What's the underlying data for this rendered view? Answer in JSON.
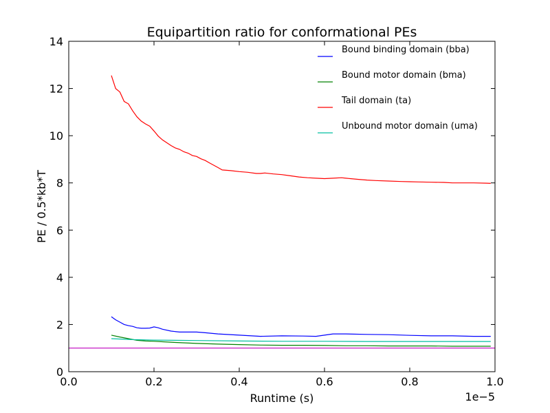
{
  "chart_data": {
    "type": "line",
    "title": "Equipartition ratio for conformational PEs",
    "xlabel": "Runtime (s)",
    "ylabel": "PE / 0.5*kb*T",
    "x_offset_label": "1e−5",
    "xlim": [
      0.0,
      1.0
    ],
    "ylim": [
      0,
      14
    ],
    "x_ticks": [
      "0.0",
      "0.2",
      "0.4",
      "0.6",
      "0.8",
      "1.0"
    ],
    "y_ticks": [
      "0",
      "2",
      "4",
      "6",
      "8",
      "10",
      "12",
      "14"
    ],
    "grid": false,
    "legend_placement": "top-right",
    "series": [
      {
        "name": "Bound binding domain (bba)",
        "color": "#0000ff",
        "x": [
          0.1,
          0.11,
          0.12,
          0.13,
          0.14,
          0.15,
          0.16,
          0.17,
          0.18,
          0.19,
          0.2,
          0.21,
          0.22,
          0.24,
          0.26,
          0.28,
          0.3,
          0.32,
          0.35,
          0.4,
          0.45,
          0.5,
          0.55,
          0.58,
          0.6,
          0.62,
          0.65,
          0.7,
          0.75,
          0.8,
          0.85,
          0.9,
          0.95,
          0.99
        ],
        "values": [
          2.33,
          2.2,
          2.1,
          2.0,
          1.95,
          1.92,
          1.86,
          1.84,
          1.84,
          1.85,
          1.9,
          1.86,
          1.8,
          1.72,
          1.68,
          1.68,
          1.68,
          1.65,
          1.6,
          1.55,
          1.5,
          1.52,
          1.51,
          1.5,
          1.55,
          1.6,
          1.6,
          1.58,
          1.57,
          1.54,
          1.52,
          1.52,
          1.5,
          1.5
        ]
      },
      {
        "name": "Bound motor domain (bma)",
        "color": "#008000",
        "x": [
          0.1,
          0.12,
          0.14,
          0.16,
          0.18,
          0.2,
          0.22,
          0.25,
          0.3,
          0.35,
          0.4,
          0.45,
          0.5,
          0.55,
          0.6,
          0.65,
          0.7,
          0.75,
          0.8,
          0.85,
          0.9,
          0.95,
          0.99
        ],
        "values": [
          1.55,
          1.47,
          1.4,
          1.33,
          1.3,
          1.29,
          1.27,
          1.24,
          1.2,
          1.17,
          1.15,
          1.13,
          1.12,
          1.12,
          1.11,
          1.1,
          1.1,
          1.09,
          1.09,
          1.09,
          1.08,
          1.08,
          1.08
        ]
      },
      {
        "name": "Tail domain (ta)",
        "color": "#ff0000",
        "x": [
          0.1,
          0.11,
          0.12,
          0.13,
          0.14,
          0.15,
          0.16,
          0.17,
          0.18,
          0.19,
          0.2,
          0.21,
          0.22,
          0.23,
          0.24,
          0.25,
          0.26,
          0.27,
          0.28,
          0.29,
          0.3,
          0.31,
          0.32,
          0.33,
          0.34,
          0.35,
          0.36,
          0.38,
          0.4,
          0.42,
          0.44,
          0.45,
          0.46,
          0.48,
          0.5,
          0.52,
          0.54,
          0.56,
          0.58,
          0.6,
          0.62,
          0.64,
          0.65,
          0.68,
          0.7,
          0.72,
          0.75,
          0.78,
          0.8,
          0.82,
          0.85,
          0.88,
          0.9,
          0.92,
          0.95,
          0.98,
          0.99
        ],
        "values": [
          12.55,
          12.0,
          11.85,
          11.45,
          11.35,
          11.05,
          10.8,
          10.62,
          10.5,
          10.4,
          10.2,
          9.98,
          9.82,
          9.7,
          9.58,
          9.48,
          9.42,
          9.32,
          9.26,
          9.16,
          9.12,
          9.02,
          8.95,
          8.85,
          8.75,
          8.65,
          8.55,
          8.52,
          8.48,
          8.45,
          8.4,
          8.4,
          8.42,
          8.38,
          8.35,
          8.3,
          8.25,
          8.22,
          8.2,
          8.18,
          8.2,
          8.22,
          8.2,
          8.15,
          8.12,
          8.1,
          8.08,
          8.06,
          8.05,
          8.04,
          8.03,
          8.02,
          8.0,
          8.0,
          8.0,
          7.99,
          7.98
        ]
      },
      {
        "name": "Unbound motor domain (uma)",
        "color": "#00bfa0",
        "x": [
          0.1,
          0.15,
          0.2,
          0.3,
          0.4,
          0.5,
          0.6,
          0.7,
          0.8,
          0.9,
          0.99
        ],
        "values": [
          1.4,
          1.36,
          1.34,
          1.32,
          1.3,
          1.29,
          1.29,
          1.28,
          1.28,
          1.28,
          1.28
        ]
      },
      {
        "color": "#bf00bf",
        "x": [
          0.0,
          1.0
        ],
        "values": [
          1.0,
          1.0
        ]
      }
    ]
  }
}
